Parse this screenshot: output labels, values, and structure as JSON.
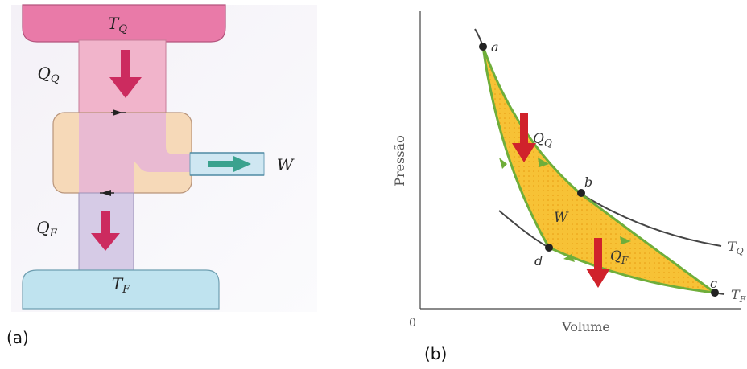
{
  "panel_a": {
    "hot_reservoir_label": "T_Q",
    "cold_reservoir_label": "T_F",
    "heat_in_label": "Q_Q",
    "heat_out_label": "Q_F",
    "work_label": "W",
    "caption": "(a)",
    "colors": {
      "hot_reservoir": "#e56fa2",
      "hot_path": "#f2b9cf",
      "engine_body": "#f6d9b8",
      "cold_reservoir": "#bfe3ef",
      "arrow": "#cc2b5f",
      "work_arrow": "#3aa28e"
    }
  },
  "panel_b": {
    "y_axis_label": "Pressão",
    "x_axis_label": "Volume",
    "origin_label": "0",
    "state_labels": {
      "a": "a",
      "b": "b",
      "c": "c",
      "d": "d"
    },
    "isotherm_hot_label": "T_Q",
    "isotherm_cold_label": "T_F",
    "cycle_area_label": "W",
    "heat_in_label": "Q_Q",
    "heat_out_label": "Q_F",
    "caption": "(b)",
    "colors": {
      "cycle_fill": "#f7c236",
      "cycle_edge": "#6fae3a",
      "arrow": "#d0222b"
    }
  }
}
